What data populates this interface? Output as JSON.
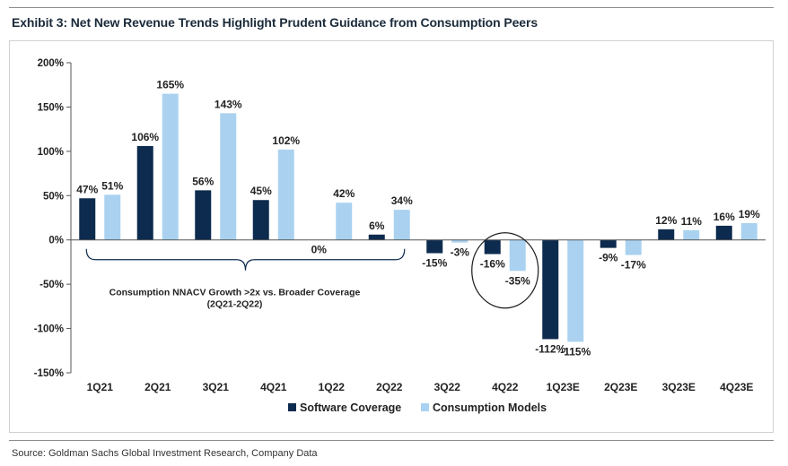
{
  "header": {
    "title": "Exhibit 3: Net New Revenue Trends Highlight Prudent Guidance from Consumption Peers"
  },
  "footer": {
    "source": "Source: Goldman Sachs Global Investment Research, Company Data"
  },
  "colors": {
    "software": "#0d2b4e",
    "consumption": "#aad2f0",
    "axis": "#555555",
    "text": "#222222"
  },
  "chart_data": {
    "type": "bar",
    "title": "",
    "xlabel": "",
    "ylabel": "",
    "ylim": [
      -150,
      200
    ],
    "yticks": [
      200,
      150,
      100,
      50,
      0,
      -50,
      -100,
      -150
    ],
    "ytick_labels": [
      "200%",
      "150%",
      "100%",
      "50%",
      "0%",
      "-50%",
      "-100%",
      "-150%"
    ],
    "categories": [
      "1Q21",
      "2Q21",
      "3Q21",
      "4Q21",
      "1Q22",
      "2Q22",
      "3Q22",
      "4Q22",
      "1Q23E",
      "2Q23E",
      "3Q23E",
      "4Q23E"
    ],
    "series": [
      {
        "name": "Software Coverage",
        "values": [
          47,
          106,
          56,
          45,
          0,
          6,
          -15,
          -16,
          -112,
          -9,
          12,
          16
        ],
        "labels": [
          "47%",
          "106%",
          "56%",
          "45%",
          "0%",
          "6%",
          "-15%",
          "-16%",
          "-112%",
          "-9%",
          "12%",
          "16%"
        ]
      },
      {
        "name": "Consumption Models",
        "values": [
          51,
          165,
          143,
          102,
          42,
          34,
          -3,
          -35,
          -115,
          -17,
          11,
          19
        ],
        "labels": [
          "51%",
          "165%",
          "143%",
          "102%",
          "42%",
          "34%",
          "-3%",
          "-35%",
          "-115%",
          "-17%",
          "11%",
          "19%"
        ]
      }
    ],
    "legend_position": "bottom",
    "annotations": {
      "bracket_text": "Consumption NNACV Growth >2x vs. Broader Coverage",
      "bracket_subtext": "(2Q21-2Q22)",
      "bracket_span": [
        "1Q21",
        "2Q22"
      ],
      "circled_category": "4Q22"
    }
  }
}
